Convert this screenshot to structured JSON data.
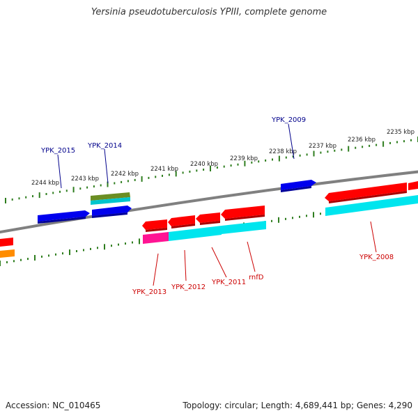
{
  "title": "Yersinia pseudotuberculosis YPIII, complete genome",
  "footer": {
    "accession": "Accession: NC_010465",
    "summary": "Topology: circular; Length: 4,689,441 bp; Genes: 4,290"
  },
  "colors": {
    "backbone": "#808080",
    "ruler_ticks": "#2e7d1e",
    "forward_label": "#00008b",
    "reverse_label": "#cc0000",
    "red_feature": "#ff0000",
    "blue_feature": "#0000ee",
    "cyan_feature": "#00e5ee",
    "magenta_feature": "#ff1493",
    "olive_feature": "#6b8e23",
    "orange_feature": "#ff8c00"
  },
  "ruler": {
    "ticks": [
      "2235 kbp",
      "2236 kbp",
      "2237 kbp",
      "2238 kbp",
      "2239 kbp",
      "2240 kbp",
      "2241 kbp",
      "2242 kbp",
      "2243 kbp",
      "2244 kbp"
    ]
  },
  "gene_labels": {
    "forward": [
      "YPK_2015",
      "YPK_2014",
      "YPK_2009"
    ],
    "reverse": [
      "YPK_2013",
      "YPK_2012",
      "YPK_2011",
      "rnfD",
      "YPK_2008"
    ]
  }
}
